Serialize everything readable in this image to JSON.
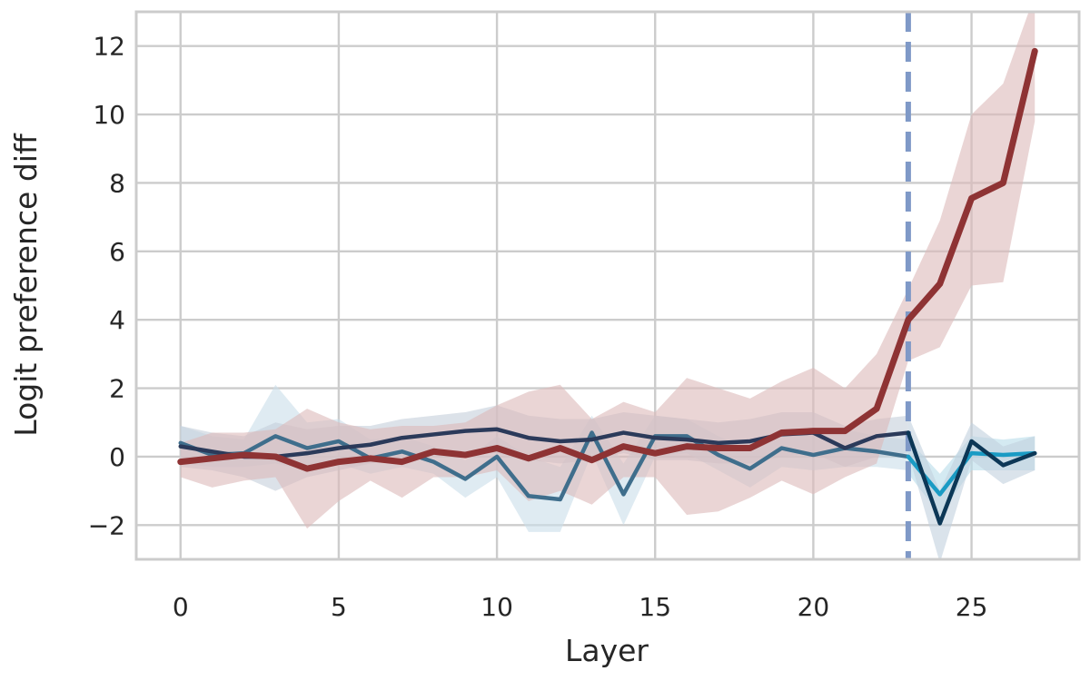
{
  "chart_data": {
    "type": "line",
    "xlabel": "Layer",
    "ylabel": "Logit preference diff",
    "xlim": [
      -1.4,
      28.4
    ],
    "ylim": [
      -3,
      13
    ],
    "x_ticks": [
      0,
      5,
      10,
      15,
      20,
      25
    ],
    "y_ticks": [
      -2,
      0,
      2,
      4,
      6,
      8,
      10,
      12
    ],
    "x_tick_labels": [
      "0",
      "5",
      "10",
      "15",
      "20",
      "25"
    ],
    "y_tick_labels": [
      "−2",
      "0",
      "2",
      "4",
      "6",
      "8",
      "10",
      "12"
    ],
    "grid": true,
    "legend": "none",
    "vline": {
      "x": 23,
      "style": "dashed",
      "color": "#7f99c7"
    },
    "series": [
      {
        "color": "#3f6e8c",
        "band_color": "#c9dde9",
        "x": [
          0,
          1,
          2,
          3,
          4,
          5,
          6,
          7,
          8,
          9,
          10,
          11,
          12,
          13,
          14,
          15,
          16,
          17,
          18,
          19,
          20,
          21,
          22,
          23
        ],
        "values": [
          0.4,
          0.05,
          0.1,
          0.6,
          0.25,
          0.45,
          -0.05,
          0.15,
          -0.15,
          -0.65,
          0.0,
          -1.15,
          -1.25,
          0.7,
          -1.1,
          0.6,
          0.6,
          0.05,
          -0.35,
          0.25,
          0.05,
          0.25,
          0.15,
          0.0
        ],
        "lower": [
          -0.2,
          -0.3,
          -0.3,
          -0.2,
          -0.4,
          -0.2,
          -0.5,
          -0.3,
          -0.5,
          -1.2,
          -0.6,
          -2.2,
          -2.2,
          0.1,
          -2.0,
          0.0,
          0.1,
          -0.4,
          -0.9,
          -0.3,
          -0.4,
          -0.3,
          -0.3,
          -0.4
        ],
        "upper": [
          0.9,
          0.6,
          0.5,
          2.1,
          1.0,
          1.1,
          0.5,
          0.6,
          0.3,
          -0.1,
          0.6,
          0.0,
          -0.3,
          1.2,
          -0.2,
          1.2,
          1.1,
          0.6,
          0.2,
          0.8,
          0.6,
          0.8,
          0.6,
          0.5
        ]
      },
      {
        "color": "#2b3a5a",
        "band_color": "#c4cedb",
        "x": [
          0,
          1,
          2,
          3,
          4,
          5,
          6,
          7,
          8,
          9,
          10,
          11,
          12,
          13,
          14,
          15,
          16,
          17,
          18,
          19,
          20,
          21,
          22,
          23
        ],
        "values": [
          0.3,
          0.15,
          0.0,
          0.0,
          0.1,
          0.25,
          0.35,
          0.55,
          0.65,
          0.75,
          0.8,
          0.55,
          0.45,
          0.5,
          0.7,
          0.55,
          0.5,
          0.4,
          0.45,
          0.65,
          0.7,
          0.25,
          0.6,
          0.7
        ],
        "lower": [
          -0.3,
          -0.4,
          -0.6,
          -1.0,
          -0.6,
          -0.4,
          -0.2,
          -0.1,
          0.0,
          0.1,
          0.1,
          -0.1,
          -0.2,
          -0.1,
          0.1,
          -0.1,
          -0.1,
          -0.2,
          -0.2,
          0.0,
          0.1,
          -0.3,
          0.0,
          0.1
        ],
        "upper": [
          0.9,
          0.7,
          0.6,
          1.0,
          0.8,
          0.9,
          0.9,
          1.1,
          1.2,
          1.3,
          1.5,
          1.2,
          1.1,
          1.1,
          1.3,
          1.2,
          1.1,
          1.0,
          1.1,
          1.3,
          1.3,
          0.9,
          1.1,
          1.2
        ]
      },
      {
        "color": "#1a9bc4",
        "band_color": "#b8dcea",
        "x": [
          23,
          24,
          25,
          26,
          27
        ],
        "values": [
          0.0,
          -1.1,
          0.1,
          0.05,
          0.1
        ],
        "lower": [
          -0.5,
          -1.7,
          -0.4,
          -0.4,
          -0.4
        ],
        "upper": [
          0.5,
          -0.5,
          0.6,
          0.5,
          0.6
        ]
      },
      {
        "color": "#0c3756",
        "band_color": "#c2d0de",
        "x": [
          23,
          24,
          25,
          26,
          27
        ],
        "values": [
          0.7,
          -1.95,
          0.45,
          -0.25,
          0.1
        ],
        "lower": [
          0.1,
          -3.1,
          -0.1,
          -0.8,
          -0.4
        ],
        "upper": [
          1.2,
          -1.0,
          1.0,
          0.3,
          0.6
        ]
      },
      {
        "color": "#8e3334",
        "band_color": "#dcb9b9",
        "x": [
          0,
          1,
          2,
          3,
          4,
          5,
          6,
          7,
          8,
          9,
          10,
          11,
          12,
          13,
          14,
          15,
          16,
          17,
          18,
          19,
          20,
          21,
          22,
          23,
          24,
          25,
          26,
          27
        ],
        "values": [
          -0.15,
          -0.05,
          0.05,
          0.0,
          -0.35,
          -0.15,
          -0.05,
          -0.15,
          0.15,
          0.05,
          0.25,
          -0.05,
          0.25,
          -0.1,
          0.3,
          0.1,
          0.3,
          0.25,
          0.25,
          0.7,
          0.75,
          0.75,
          1.4,
          4.0,
          5.05,
          7.55,
          8.0,
          11.85
        ],
        "lower": [
          -0.6,
          -0.9,
          -0.7,
          -0.6,
          -2.1,
          -1.3,
          -0.7,
          -1.2,
          -0.6,
          -0.6,
          -0.4,
          -1.3,
          -1.0,
          -1.4,
          -0.6,
          -0.6,
          -1.7,
          -1.6,
          -1.2,
          -0.7,
          -1.1,
          -0.6,
          -0.2,
          2.8,
          3.2,
          5.0,
          5.1,
          9.8
        ],
        "upper": [
          0.4,
          0.7,
          0.7,
          0.8,
          1.4,
          1.0,
          0.8,
          0.9,
          0.9,
          1.0,
          1.5,
          1.9,
          2.1,
          1.1,
          1.6,
          1.3,
          2.3,
          2.0,
          1.7,
          2.2,
          2.6,
          2.0,
          3.0,
          4.9,
          6.9,
          10.0,
          10.9,
          13.5
        ]
      }
    ]
  }
}
